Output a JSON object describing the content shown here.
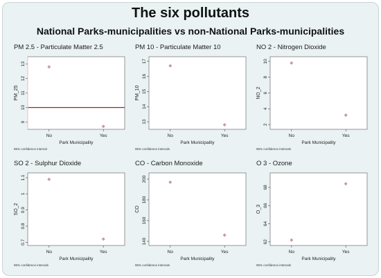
{
  "figure": {
    "title": "The six pollutants",
    "subtitle": "National Parks-municipalities vs non-National Parks-municipalities"
  },
  "colors": {
    "background": "#eaf2f3",
    "plot_area": "#ffffff",
    "marker": "#c8a2a2",
    "reference_line": "#b11a1a"
  },
  "chart_data": [
    {
      "type": "scatter",
      "title": "PM 2.5 - Particulate Matter 2.5",
      "xlabel": "Park Municipality",
      "ylabel": "PM_25",
      "categories": [
        "No",
        "Yes"
      ],
      "values": [
        12.8,
        8.7
      ],
      "ylim": [
        8.5,
        13.5
      ],
      "yticks": [
        9,
        10,
        11,
        12,
        13
      ],
      "reference_line": 10,
      "note": "95% confidence interval"
    },
    {
      "type": "scatter",
      "title": "PM 10 - Particulate Matter 10",
      "xlabel": "Park Municipality",
      "ylabel": "PM_10",
      "categories": [
        "No",
        "Yes"
      ],
      "values": [
        16.7,
        12.8
      ],
      "ylim": [
        12.5,
        17.3
      ],
      "yticks": [
        13,
        14,
        15,
        16,
        17
      ],
      "note": "95% confidence intervals"
    },
    {
      "type": "scatter",
      "title": "NO 2 - Nitrogen Dioxide",
      "xlabel": "Park Municipality",
      "ylabel": "NO_2",
      "categories": [
        "No",
        "Yes"
      ],
      "values": [
        9.8,
        3.2
      ],
      "ylim": [
        1.4,
        10.6
      ],
      "yticks": [
        2,
        4,
        6,
        8,
        10
      ],
      "note": "95% confidence intervals"
    },
    {
      "type": "scatter",
      "title": "SO 2 - Sulphur Dioxide",
      "xlabel": "Park Municipality",
      "ylabel": "SO_2",
      "categories": [
        "No",
        "Yes"
      ],
      "values": [
        1.09,
        0.72
      ],
      "ylim": [
        0.68,
        1.13
      ],
      "yticks": [
        0.7,
        0.8,
        0.9,
        1,
        1.1
      ],
      "note": "95% confidence intervals"
    },
    {
      "type": "scatter",
      "title": "CO - Carbon Monoxide",
      "xlabel": "Park Municipality",
      "ylabel": "CO",
      "categories": [
        "No",
        "Yes"
      ],
      "values": [
        197,
        146
      ],
      "ylim": [
        136,
        206
      ],
      "yticks": [
        140,
        160,
        180,
        200
      ],
      "note": "95% confidence intervals"
    },
    {
      "type": "scatter",
      "title": "O 3 - Ozone",
      "xlabel": "Park Municipality",
      "ylabel": "O_3",
      "categories": [
        "No",
        "Yes"
      ],
      "values": [
        62.2,
        68.4
      ],
      "ylim": [
        61.6,
        69.6
      ],
      "yticks": [
        62,
        64,
        66,
        68
      ],
      "note": "95% confidence intervals"
    }
  ]
}
